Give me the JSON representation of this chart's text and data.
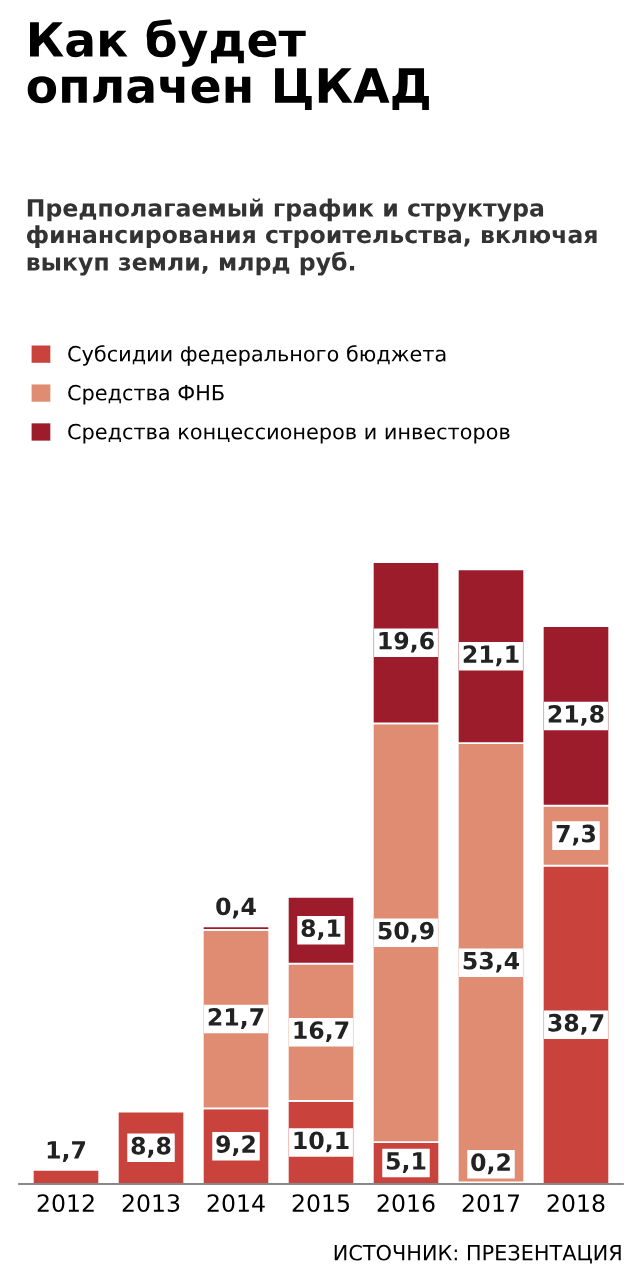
{
  "chart_data": {
    "type": "bar",
    "stacked": true,
    "title": "Как будет\nоплачен ЦКАД",
    "subtitle": "Предполагаемый график и структура финансирования строительства, включая выкуп земли, млрд руб.",
    "categories": [
      "2012",
      "2013",
      "2014",
      "2015",
      "2016",
      "2017",
      "2018"
    ],
    "series": [
      {
        "name": "Субсидии федерального бюджета",
        "color": "#c9423c",
        "values": [
          1.7,
          8.8,
          9.2,
          10.1,
          5.1,
          0.2,
          38.7
        ],
        "value_labels": [
          "1,7",
          "8,8",
          "9,2",
          "10,1",
          "5,1",
          "0,2",
          "38,7"
        ]
      },
      {
        "name": "Средства ФНБ",
        "color": "#e08c72",
        "values": [
          null,
          null,
          21.7,
          16.7,
          50.9,
          53.4,
          7.3
        ],
        "value_labels": [
          null,
          null,
          "21,7",
          "16,7",
          "50,9",
          "53,4",
          "7,3"
        ]
      },
      {
        "name": "Средства концессионеров и инвесторов",
        "color": "#9c1c2c",
        "values": [
          null,
          null,
          0.4,
          8.1,
          19.6,
          21.1,
          21.8
        ],
        "value_labels": [
          null,
          null,
          "0,4",
          "8,1",
          "19,6",
          "21,1",
          "21,8"
        ]
      }
    ],
    "legend": "top left",
    "annotations": [
      "ИСТОЧНИК: ПРЕЗЕНТАЦИЯ"
    ]
  }
}
